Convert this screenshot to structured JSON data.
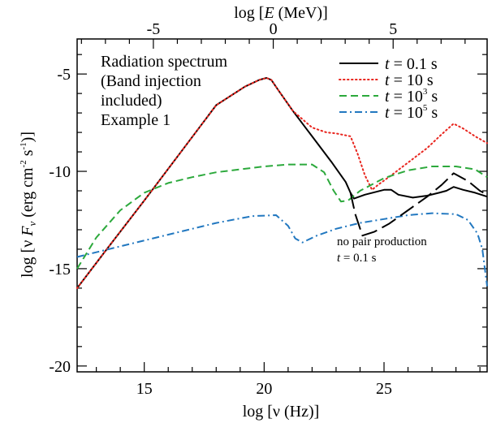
{
  "chart_data": {
    "type": "line",
    "title": "",
    "xlabel": "log [ν (Hz)]",
    "ylabel": "log [ν F_ν (erg cm⁻² s⁻¹)]",
    "xlabel_parts": {
      "pre": "log [",
      "sym": "ν",
      "post": " (Hz)]"
    },
    "ylabel_parts": {
      "pre": "log [",
      "nu": "ν",
      "sp": " ",
      "F": "F",
      "sub": "ν",
      "mid": " (erg cm",
      "sup1": "-2",
      "mid2": " s",
      "sup2": "-1",
      "post": ")]"
    },
    "top_xlabel_parts": {
      "pre": "log [",
      "E": "E",
      "post": " (MeV)]"
    },
    "xlim": [
      12.2,
      29.3
    ],
    "ylim": [
      -20.3,
      -3.2
    ],
    "grid": false,
    "legend_position": "top-right",
    "x_ticks": [
      15,
      20,
      25
    ],
    "x_tick_labels": [
      "15",
      "20",
      "25"
    ],
    "y_ticks": [
      -5,
      -10,
      -15,
      -20
    ],
    "y_tick_labels": [
      "-5",
      "-10",
      "-15",
      "-20"
    ],
    "top_x_ticks": [
      -5,
      0,
      5
    ],
    "top_x_tick_labels": [
      "-5",
      "0",
      "5"
    ],
    "top_x_offset": 20.38,
    "annotation_lines": [
      "Radiation spectrum",
      "(Band injection",
      "included)",
      "Example 1"
    ],
    "pair_annotation": {
      "line1": "no pair production",
      "t": "t",
      "eq": " = 0.1 s"
    },
    "series": [
      {
        "name_t": "t",
        "name_eq": " = 0.1 s",
        "name_exp": "",
        "color": "#000000",
        "dash": "solid",
        "x": [
          12.2,
          13.5,
          15.0,
          16.5,
          18.0,
          19.2,
          19.8,
          20.1,
          20.3,
          20.6,
          21.2,
          22.0,
          22.8,
          23.4,
          23.6,
          23.75,
          24.2,
          25.0,
          25.3,
          25.6,
          26.2,
          26.8,
          27.3,
          27.6,
          27.9,
          28.3,
          28.8,
          29.3
        ],
        "y": [
          -16.0,
          -13.9,
          -11.5,
          -9.05,
          -6.6,
          -5.65,
          -5.3,
          -5.2,
          -5.3,
          -5.85,
          -6.9,
          -8.2,
          -9.5,
          -10.55,
          -11.1,
          -11.4,
          -11.2,
          -10.95,
          -10.95,
          -11.2,
          -11.35,
          -11.25,
          -11.1,
          -11.0,
          -10.8,
          -10.95,
          -11.1,
          -11.3
        ]
      },
      {
        "name_t": "t",
        "name_eq": " = 10 s",
        "name_exp": "",
        "color": "#e8251e",
        "dash": "dotted",
        "x": [
          12.2,
          13.5,
          15.0,
          16.5,
          18.0,
          19.2,
          19.8,
          20.1,
          20.3,
          20.6,
          21.2,
          22.0,
          22.6,
          23.0,
          23.6,
          23.9,
          24.2,
          24.5,
          24.8,
          25.2,
          26.0,
          26.8,
          27.4,
          27.9,
          28.3,
          28.8,
          29.3
        ],
        "y": [
          -16.0,
          -13.9,
          -11.5,
          -9.05,
          -6.6,
          -5.65,
          -5.3,
          -5.2,
          -5.3,
          -5.85,
          -6.9,
          -7.75,
          -8.0,
          -8.05,
          -8.2,
          -9.1,
          -10.2,
          -10.95,
          -10.65,
          -10.3,
          -9.55,
          -8.8,
          -8.1,
          -7.55,
          -7.8,
          -8.2,
          -8.55
        ]
      },
      {
        "name_t": "t",
        "name_eq": " = 10",
        "name_exp": "3",
        "name_unit": " s",
        "color": "#2ca93c",
        "dash": "dashed",
        "x": [
          12.2,
          13.0,
          14.0,
          15.0,
          16.0,
          17.0,
          18.0,
          19.0,
          20.0,
          21.0,
          22.0,
          22.5,
          22.9,
          23.2,
          23.5,
          24.0,
          25.0,
          26.0,
          27.0,
          28.0,
          28.8,
          29.3
        ],
        "y": [
          -15.0,
          -13.4,
          -12.0,
          -11.1,
          -10.6,
          -10.3,
          -10.05,
          -9.9,
          -9.75,
          -9.65,
          -9.65,
          -10.05,
          -11.0,
          -11.55,
          -11.5,
          -11.0,
          -10.35,
          -9.95,
          -9.75,
          -9.75,
          -9.9,
          -10.3
        ]
      },
      {
        "name_t": "t",
        "name_eq": " = 10",
        "name_exp": "5",
        "name_unit": " s",
        "color": "#2278c0",
        "dash": "dashdot",
        "x": [
          12.2,
          14.0,
          16.0,
          18.0,
          19.5,
          20.5,
          21.0,
          21.3,
          21.6,
          22.2,
          23.0,
          24.0,
          25.0,
          26.0,
          27.0,
          28.0,
          28.5,
          28.9,
          29.1,
          29.3
        ],
        "y": [
          -14.4,
          -13.85,
          -13.25,
          -12.65,
          -12.3,
          -12.25,
          -12.8,
          -13.45,
          -13.65,
          -13.3,
          -12.95,
          -12.65,
          -12.45,
          -12.25,
          -12.15,
          -12.2,
          -12.5,
          -13.2,
          -14.0,
          -15.9
        ]
      },
      {
        "name": "no pair production",
        "color": "#000000",
        "dash": "longdash",
        "in_legend": false,
        "x": [
          23.6,
          23.8,
          24.1,
          24.6,
          25.2,
          26.0,
          26.8,
          27.4,
          27.9,
          28.5,
          29.0,
          29.3
        ],
        "y": [
          -11.1,
          -12.2,
          -13.3,
          -13.1,
          -12.7,
          -12.0,
          -11.3,
          -10.7,
          -10.1,
          -10.5,
          -11.0,
          -11.2
        ]
      }
    ]
  }
}
